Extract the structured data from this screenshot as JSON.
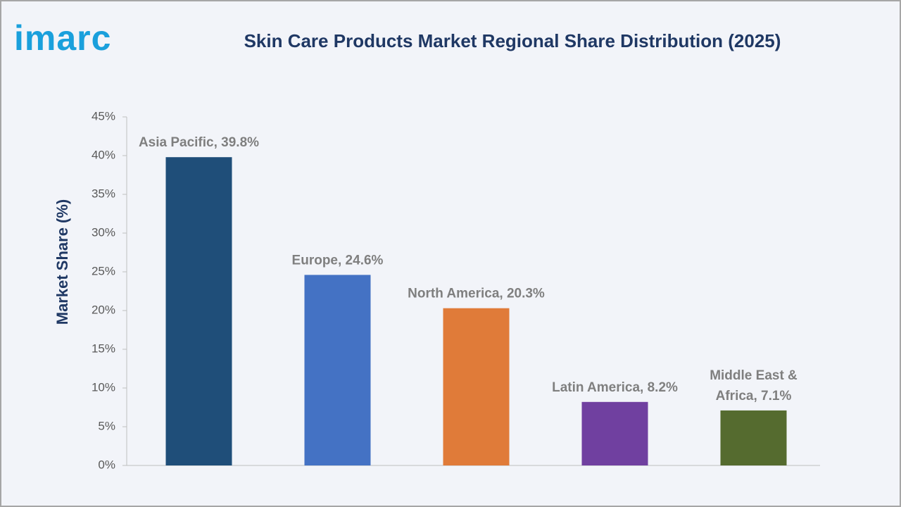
{
  "logo": "imarc",
  "chart_data": {
    "type": "bar",
    "title": "Skin Care Products Market Regional Share Distribution (2025)",
    "y_label": "Market Share (%)",
    "values": [
      39.8,
      24.6,
      20.3,
      8.2,
      7.1
    ],
    "value_labels": [
      "Asia Pacific, 39.8%",
      "Europe, 24.6%",
      "North America, 20.3%",
      "Latin America, 8.2%",
      "Middle East &\nAfrica, 7.1%"
    ],
    "colors": [
      "#1f4e79",
      "#4472c4",
      "#e07b39",
      "#7040a0",
      "#556b2f"
    ],
    "ylim": [
      0,
      45
    ],
    "yticks": [
      {
        "value": 0,
        "label": "0%"
      },
      {
        "value": 5,
        "label": "5%"
      },
      {
        "value": 10,
        "label": "10%"
      },
      {
        "value": 15,
        "label": "15%"
      },
      {
        "value": 20,
        "label": "20%"
      },
      {
        "value": 25,
        "label": "25%"
      },
      {
        "value": 30,
        "label": "30%"
      },
      {
        "value": 35,
        "label": "35%"
      },
      {
        "value": 40,
        "label": "40%"
      },
      {
        "value": 45,
        "label": "45%"
      }
    ],
    "grid": false
  }
}
